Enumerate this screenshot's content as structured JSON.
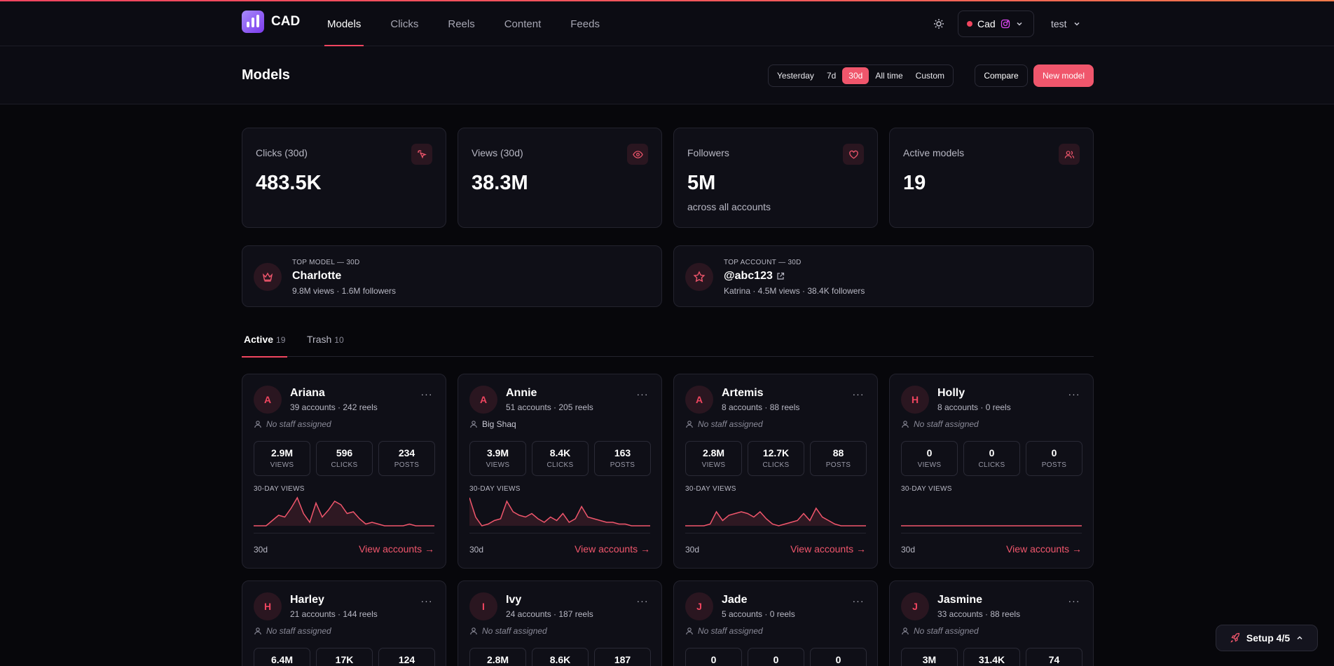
{
  "brand": {
    "name": "CAD"
  },
  "nav": {
    "items": [
      "Models",
      "Clicks",
      "Reels",
      "Content",
      "Feeds"
    ]
  },
  "workspace": {
    "name": "Cad"
  },
  "user": {
    "name": "test"
  },
  "page": {
    "title": "Models"
  },
  "range": {
    "options": [
      "Yesterday",
      "7d",
      "30d",
      "All time",
      "Custom"
    ],
    "selected": "30d"
  },
  "actions": {
    "compare": "Compare",
    "new_model": "New model"
  },
  "stats": [
    {
      "label": "Clicks (30d)",
      "value": "483.5K",
      "sub": "",
      "icon": "cursor-click-icon"
    },
    {
      "label": "Views (30d)",
      "value": "38.3M",
      "sub": "",
      "icon": "eye-icon"
    },
    {
      "label": "Followers",
      "value": "5M",
      "sub": "across all accounts",
      "icon": "heart-icon"
    },
    {
      "label": "Active models",
      "value": "19",
      "sub": "",
      "icon": "users-icon"
    }
  ],
  "top_model": {
    "kicker": "TOP MODEL — 30D",
    "name": "Charlotte",
    "sub": "9.8M views · 1.6M followers",
    "icon": "crown-icon"
  },
  "top_account": {
    "kicker": "TOP ACCOUNT — 30D",
    "name": "@abc123",
    "sub": "Katrina · 4.5M views · 38.4K followers",
    "icon": "star-icon"
  },
  "tabs": [
    {
      "label": "Active",
      "count": "19"
    },
    {
      "label": "Trash",
      "count": "10"
    }
  ],
  "card_labels": {
    "views": "VIEWS",
    "clicks": "CLICKS",
    "posts": "POSTS",
    "chart": "30-DAY VIEWS",
    "range": "30d",
    "link": "View accounts →"
  },
  "colors": {
    "accent": "#f0566c",
    "background": "#07070b",
    "card": "#0f0f17"
  },
  "models": [
    {
      "initial": "A",
      "name": "Ariana",
      "meta": "39 accounts · 242 reels",
      "staff": "No staff assigned",
      "staff_assigned": false,
      "views": "2.9M",
      "clicks": "596",
      "posts": "234",
      "trend": [
        0,
        0,
        0,
        3,
        6,
        5,
        10,
        16,
        7,
        2,
        13,
        5,
        9,
        14,
        12,
        7,
        8,
        4,
        1,
        2,
        1,
        0,
        0,
        0,
        0,
        1,
        0,
        0,
        0,
        0
      ]
    },
    {
      "initial": "A",
      "name": "Annie",
      "meta": "51 accounts · 205 reels",
      "staff": "Big Shaq",
      "staff_assigned": true,
      "views": "3.9M",
      "clicks": "8.4K",
      "posts": "163",
      "trend": [
        16,
        5,
        0,
        1,
        3,
        4,
        14,
        8,
        6,
        5,
        7,
        4,
        2,
        5,
        3,
        7,
        2,
        4,
        11,
        5,
        4,
        3,
        2,
        2,
        1,
        1,
        0,
        0,
        0,
        0
      ]
    },
    {
      "initial": "A",
      "name": "Artemis",
      "meta": "8 accounts · 88 reels",
      "staff": "No staff assigned",
      "staff_assigned": false,
      "views": "2.8M",
      "clicks": "12.7K",
      "posts": "88",
      "trend": [
        0,
        0,
        0,
        0,
        1,
        8,
        3,
        6,
        7,
        8,
        7,
        5,
        8,
        4,
        1,
        0,
        1,
        2,
        3,
        7,
        3,
        10,
        5,
        3,
        1,
        0,
        0,
        0,
        0,
        0
      ]
    },
    {
      "initial": "H",
      "name": "Holly",
      "meta": "8 accounts · 0 reels",
      "staff": "No staff assigned",
      "staff_assigned": false,
      "views": "0",
      "clicks": "0",
      "posts": "0",
      "trend": [
        0,
        0,
        0,
        0,
        0,
        0,
        0,
        0,
        0,
        0,
        0,
        0,
        0,
        0,
        0,
        0,
        0,
        0,
        0,
        0,
        0,
        0,
        0,
        0,
        0,
        0,
        0,
        0,
        0,
        0
      ]
    },
    {
      "initial": "H",
      "name": "Harley",
      "meta": "21 accounts · 144 reels",
      "staff": "No staff assigned",
      "staff_assigned": false,
      "views": "6.4M",
      "clicks": "17K",
      "posts": "124",
      "trend": []
    },
    {
      "initial": "I",
      "name": "Ivy",
      "meta": "24 accounts · 187 reels",
      "staff": "No staff assigned",
      "staff_assigned": false,
      "views": "2.8M",
      "clicks": "8.6K",
      "posts": "187",
      "trend": []
    },
    {
      "initial": "J",
      "name": "Jade",
      "meta": "5 accounts · 0 reels",
      "staff": "No staff assigned",
      "staff_assigned": false,
      "views": "0",
      "clicks": "0",
      "posts": "0",
      "trend": []
    },
    {
      "initial": "J",
      "name": "Jasmine",
      "meta": "33 accounts · 88 reels",
      "staff": "No staff assigned",
      "staff_assigned": false,
      "views": "3M",
      "clicks": "31.4K",
      "posts": "74",
      "trend": []
    }
  ],
  "setup": {
    "label": "Setup 4/5"
  }
}
